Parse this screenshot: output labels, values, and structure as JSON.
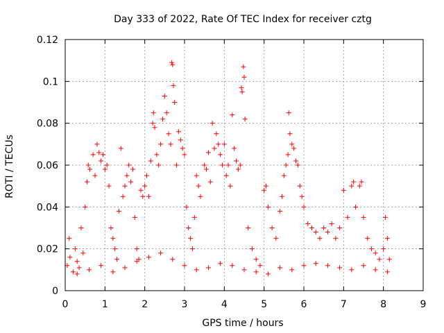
{
  "chart_data": {
    "type": "scatter",
    "title": "Day 333 of 2022, Rate Of TEC Index for receiver cztg",
    "xlabel": "GPS time / hours",
    "ylabel": "ROTI / TECUs",
    "xlim": [
      0,
      9
    ],
    "ylim": [
      0,
      0.12
    ],
    "xticks": [
      0,
      1,
      2,
      3,
      4,
      5,
      6,
      7,
      8,
      9
    ],
    "yticks": [
      0,
      0.02,
      0.04,
      0.06,
      0.08,
      0.1,
      0.12
    ],
    "xtick_labels": [
      "0",
      "1",
      "2",
      "3",
      "4",
      "5",
      "6",
      "7",
      "8",
      "9"
    ],
    "ytick_labels": [
      "0",
      "0.02",
      "0.04",
      "0.06",
      "0.08",
      "0.1",
      "0.12"
    ],
    "grid": true,
    "marker": "+",
    "color": "#ff0000",
    "x_coverage": [
      0,
      8.15
    ],
    "series": [
      {
        "values": [
          [
            0.05,
            0.012
          ],
          [
            0.1,
            0.025
          ],
          [
            0.12,
            0.016
          ],
          [
            0.2,
            0.009
          ],
          [
            0.25,
            0.02
          ],
          [
            0.3,
            0.014
          ],
          [
            0.35,
            0.011
          ],
          [
            0.4,
            0.03
          ],
          [
            0.45,
            0.018
          ],
          [
            0.5,
            0.04
          ],
          [
            0.55,
            0.052
          ],
          [
            0.58,
            0.06
          ],
          [
            0.62,
            0.058
          ],
          [
            0.7,
            0.065
          ],
          [
            0.75,
            0.055
          ],
          [
            0.8,
            0.07
          ],
          [
            0.85,
            0.066
          ],
          [
            0.9,
            0.062
          ],
          [
            0.95,
            0.065
          ],
          [
            1.0,
            0.058
          ],
          [
            1.05,
            0.06
          ],
          [
            1.1,
            0.05
          ],
          [
            1.15,
            0.03
          ],
          [
            1.2,
            0.025
          ],
          [
            1.25,
            0.02
          ],
          [
            1.3,
            0.015
          ],
          [
            1.35,
            0.038
          ],
          [
            1.4,
            0.068
          ],
          [
            1.45,
            0.045
          ],
          [
            1.5,
            0.05
          ],
          [
            1.55,
            0.055
          ],
          [
            1.6,
            0.06
          ],
          [
            1.65,
            0.052
          ],
          [
            1.7,
            0.058
          ],
          [
            1.75,
            0.035
          ],
          [
            1.8,
            0.02
          ],
          [
            1.85,
            0.015
          ],
          [
            1.9,
            0.048
          ],
          [
            1.95,
            0.045
          ],
          [
            2.0,
            0.05
          ],
          [
            2.05,
            0.055
          ],
          [
            2.1,
            0.045
          ],
          [
            2.15,
            0.062
          ],
          [
            2.2,
            0.08
          ],
          [
            2.22,
            0.085
          ],
          [
            2.25,
            0.078
          ],
          [
            2.3,
            0.065
          ],
          [
            2.35,
            0.06
          ],
          [
            2.4,
            0.07
          ],
          [
            2.45,
            0.082
          ],
          [
            2.5,
            0.093
          ],
          [
            2.55,
            0.085
          ],
          [
            2.6,
            0.075
          ],
          [
            2.65,
            0.07
          ],
          [
            2.68,
            0.109
          ],
          [
            2.7,
            0.108
          ],
          [
            2.72,
            0.098
          ],
          [
            2.75,
            0.09
          ],
          [
            2.8,
            0.06
          ],
          [
            2.85,
            0.076
          ],
          [
            2.9,
            0.072
          ],
          [
            2.95,
            0.068
          ],
          [
            3.0,
            0.065
          ],
          [
            3.05,
            0.04
          ],
          [
            3.1,
            0.03
          ],
          [
            3.15,
            0.025
          ],
          [
            3.2,
            0.02
          ],
          [
            3.25,
            0.035
          ],
          [
            3.3,
            0.055
          ],
          [
            3.35,
            0.05
          ],
          [
            3.4,
            0.045
          ],
          [
            3.5,
            0.06
          ],
          [
            3.55,
            0.058
          ],
          [
            3.6,
            0.066
          ],
          [
            3.65,
            0.052
          ],
          [
            3.7,
            0.08
          ],
          [
            3.75,
            0.068
          ],
          [
            3.8,
            0.075
          ],
          [
            3.85,
            0.07
          ],
          [
            3.9,
            0.065
          ],
          [
            3.95,
            0.06
          ],
          [
            4.0,
            0.07
          ],
          [
            4.05,
            0.055
          ],
          [
            4.1,
            0.06
          ],
          [
            4.15,
            0.05
          ],
          [
            4.2,
            0.084
          ],
          [
            4.25,
            0.068
          ],
          [
            4.3,
            0.062
          ],
          [
            4.35,
            0.058
          ],
          [
            4.4,
            0.06
          ],
          [
            4.43,
            0.097
          ],
          [
            4.45,
            0.095
          ],
          [
            4.48,
            0.107
          ],
          [
            4.5,
            0.102
          ],
          [
            4.52,
            0.082
          ],
          [
            4.6,
            0.03
          ],
          [
            4.7,
            0.02
          ],
          [
            4.8,
            0.015
          ],
          [
            4.9,
            0.012
          ],
          [
            5.0,
            0.048
          ],
          [
            5.05,
            0.05
          ],
          [
            5.1,
            0.04
          ],
          [
            5.2,
            0.03
          ],
          [
            5.3,
            0.025
          ],
          [
            5.4,
            0.038
          ],
          [
            5.45,
            0.045
          ],
          [
            5.5,
            0.055
          ],
          [
            5.55,
            0.06
          ],
          [
            5.6,
            0.065
          ],
          [
            5.62,
            0.085
          ],
          [
            5.65,
            0.075
          ],
          [
            5.7,
            0.07
          ],
          [
            5.75,
            0.068
          ],
          [
            5.8,
            0.062
          ],
          [
            5.85,
            0.06
          ],
          [
            5.9,
            0.05
          ],
          [
            5.95,
            0.045
          ],
          [
            6.0,
            0.04
          ],
          [
            6.1,
            0.032
          ],
          [
            6.2,
            0.03
          ],
          [
            6.3,
            0.028
          ],
          [
            6.4,
            0.025
          ],
          [
            6.5,
            0.03
          ],
          [
            6.6,
            0.028
          ],
          [
            6.7,
            0.032
          ],
          [
            6.8,
            0.025
          ],
          [
            6.9,
            0.03
          ],
          [
            7.0,
            0.048
          ],
          [
            7.1,
            0.035
          ],
          [
            7.2,
            0.05
          ],
          [
            7.25,
            0.052
          ],
          [
            7.3,
            0.04
          ],
          [
            7.4,
            0.05
          ],
          [
            7.45,
            0.052
          ],
          [
            7.5,
            0.035
          ],
          [
            7.6,
            0.025
          ],
          [
            7.7,
            0.02
          ],
          [
            7.8,
            0.018
          ],
          [
            7.9,
            0.015
          ],
          [
            8.0,
            0.02
          ],
          [
            8.05,
            0.035
          ],
          [
            8.1,
            0.025
          ],
          [
            8.15,
            0.015
          ],
          [
            0.3,
            0.008
          ],
          [
            0.6,
            0.01
          ],
          [
            0.9,
            0.012
          ],
          [
            1.2,
            0.009
          ],
          [
            1.5,
            0.011
          ],
          [
            1.8,
            0.014
          ],
          [
            2.1,
            0.016
          ],
          [
            2.4,
            0.018
          ],
          [
            2.7,
            0.015
          ],
          [
            3.0,
            0.012
          ],
          [
            3.3,
            0.01
          ],
          [
            3.6,
            0.011
          ],
          [
            3.9,
            0.013
          ],
          [
            4.2,
            0.012
          ],
          [
            4.5,
            0.01
          ],
          [
            4.8,
            0.009
          ],
          [
            5.1,
            0.008
          ],
          [
            5.4,
            0.011
          ],
          [
            5.7,
            0.01
          ],
          [
            6.0,
            0.012
          ],
          [
            6.3,
            0.013
          ],
          [
            6.6,
            0.012
          ],
          [
            6.9,
            0.011
          ],
          [
            7.2,
            0.01
          ],
          [
            7.5,
            0.012
          ],
          [
            7.8,
            0.01
          ],
          [
            8.1,
            0.009
          ]
        ]
      }
    ]
  }
}
